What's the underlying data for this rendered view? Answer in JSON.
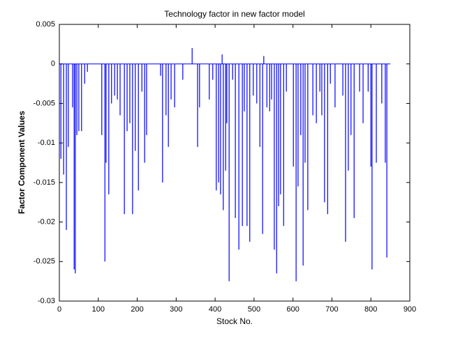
{
  "chart_data": {
    "type": "stem",
    "title": "Technology factor in new factor model",
    "x_label": "Stock No.",
    "y_label": "Factor Component Values",
    "color": "#0000ff",
    "xlim": [
      0,
      900
    ],
    "xticks": [
      0,
      100,
      200,
      300,
      400,
      500,
      600,
      700,
      800,
      900
    ],
    "ylim": [
      -0.03,
      0.005
    ],
    "yticks": [
      -0.03,
      -0.025,
      -0.02,
      -0.015,
      -0.01,
      -0.005,
      0,
      0.005
    ],
    "x": [
      0,
      4,
      11,
      18,
      23,
      34,
      38,
      41,
      45,
      50,
      57,
      65,
      72,
      109,
      117,
      120,
      127,
      134,
      142,
      149,
      156,
      167,
      174,
      181,
      188,
      195,
      203,
      212,
      219,
      224,
      260,
      265,
      274,
      280,
      287,
      296,
      317,
      341,
      355,
      360,
      385,
      394,
      403,
      409,
      414,
      418,
      421,
      427,
      430,
      436,
      445,
      452,
      461,
      470,
      475,
      482,
      489,
      498,
      507,
      515,
      522,
      525,
      533,
      540,
      545,
      552,
      558,
      563,
      568,
      576,
      583,
      601,
      608,
      613,
      620,
      626,
      631,
      638,
      651,
      660,
      669,
      674,
      681,
      689,
      696,
      708,
      728,
      735,
      742,
      749,
      757,
      771,
      780,
      793,
      800,
      803,
      814,
      828,
      837,
      841,
      850
    ],
    "values": [
      0,
      -0.012,
      -0.014,
      -0.021,
      -0.0105,
      -0.0055,
      -0.026,
      -0.0265,
      -0.009,
      -0.0085,
      -0.0085,
      -0.0025,
      -0.001,
      -0.009,
      -0.025,
      -0.0125,
      -0.0165,
      -0.005,
      -0.004,
      -0.0045,
      -0.0065,
      -0.019,
      -0.0085,
      -0.0075,
      -0.019,
      -0.011,
      -0.016,
      -0.0035,
      -0.0125,
      -0.009,
      -0.0015,
      -0.015,
      -0.0065,
      -0.0105,
      -0.0045,
      -0.0055,
      -0.002,
      0.002,
      -0.0105,
      -0.0055,
      -0.0045,
      -0.002,
      -0.016,
      -0.015,
      -0.0165,
      0.0012,
      -0.0185,
      -0.0135,
      -0.0075,
      -0.0275,
      -0.002,
      -0.0195,
      -0.0235,
      -0.0205,
      -0.006,
      -0.0205,
      -0.0225,
      -0.004,
      -0.005,
      -0.0105,
      -0.0215,
      0.001,
      -0.0055,
      -0.006,
      -0.0045,
      -0.0235,
      -0.0265,
      -0.018,
      -0.0165,
      -0.0205,
      -0.0035,
      -0.013,
      -0.0275,
      -0.0155,
      -0.009,
      -0.0255,
      -0.0125,
      -0.0185,
      -0.0065,
      -0.0075,
      -0.0035,
      -0.0065,
      -0.0175,
      -0.019,
      -0.0025,
      -0.0055,
      -0.004,
      -0.0225,
      -0.0135,
      -0.009,
      -0.0195,
      -0.0035,
      -0.0075,
      -0.0035,
      -0.013,
      -0.026,
      -0.0125,
      -0.005,
      -0.0125,
      -0.0245,
      0
    ]
  }
}
